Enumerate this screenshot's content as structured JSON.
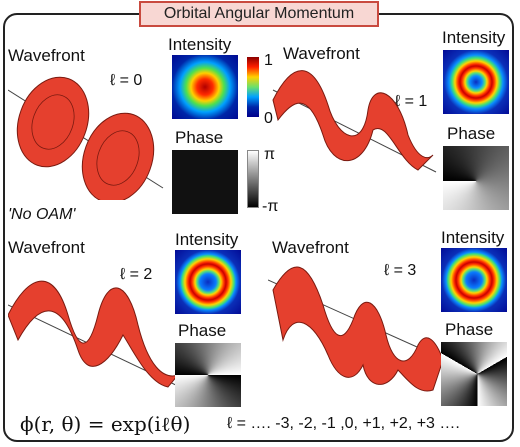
{
  "title": "Orbital Angular Momentum",
  "panels": [
    {
      "wavefront": "Wavefront",
      "l_label": "ℓ = 0",
      "intensity": "Intensity",
      "phase": "Phase",
      "note": "'No OAM'"
    },
    {
      "wavefront": "Wavefront",
      "l_label": "ℓ = 1",
      "intensity": "Intensity",
      "phase": "Phase"
    },
    {
      "wavefront": "Wavefront",
      "l_label": "ℓ = 2",
      "intensity": "Intensity",
      "phase": "Phase"
    },
    {
      "wavefront": "Wavefront",
      "l_label": "ℓ = 3",
      "intensity": "Intensity",
      "phase": "Phase"
    }
  ],
  "colorbar": {
    "max": "1",
    "min": "0"
  },
  "phasebar": {
    "max": "π",
    "min": "-π"
  },
  "formula": "ϕ(r, θ) = exp(iℓθ)",
  "l_values": "ℓ = …. -3, -2, -1 ,0, +1, +2, +3 ….",
  "colors": {
    "wavefront": "#e5402e",
    "title_border": "#c94a3f",
    "title_fill": "#f8d7d3"
  }
}
